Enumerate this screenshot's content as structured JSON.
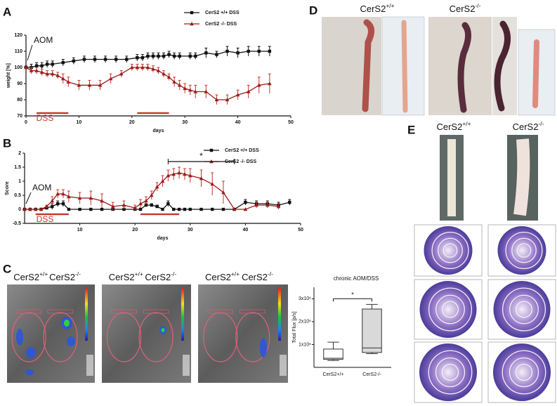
{
  "panel_labels": [
    "A",
    "B",
    "C",
    "D",
    "E"
  ],
  "genotype_labels": [
    {
      "base": "CerS2",
      "sup": "+/+"
    },
    {
      "base": "CerS2",
      "sup": "-/-"
    }
  ],
  "chart_data": [
    {
      "type": "line",
      "x_label": "days",
      "y_label": "weight [%]",
      "annotations": [
        "AOM",
        "DSS"
      ],
      "xlim": [
        0,
        50
      ],
      "xticks": [
        0,
        10,
        20,
        30,
        40,
        50
      ],
      "ylim": [
        70,
        120
      ],
      "yticks": [
        70,
        80,
        90,
        100,
        110,
        120
      ],
      "dss_periods": [
        [
          2,
          8
        ],
        [
          21,
          27
        ]
      ],
      "series": [
        {
          "name": "CerS2 +/+ DSS",
          "color": "#111111",
          "marker": "square",
          "x": [
            0,
            1,
            2,
            3,
            4,
            5,
            7,
            9,
            11,
            13,
            15,
            17,
            19,
            21,
            22,
            23,
            24,
            25,
            26,
            27,
            28,
            29,
            31,
            32,
            34,
            36,
            38,
            40,
            42,
            44,
            46
          ],
          "values": [
            100,
            100,
            101,
            101,
            102,
            102,
            103,
            104,
            105,
            105,
            105,
            105,
            105,
            106,
            106,
            107,
            107,
            107,
            107,
            108,
            107,
            107,
            107,
            107,
            109,
            108,
            110,
            109,
            110,
            110,
            110
          ],
          "errors": [
            1,
            2,
            2,
            2,
            2,
            2,
            2,
            2,
            2,
            2,
            2,
            2,
            2,
            2,
            2,
            2,
            2,
            2,
            2,
            2,
            2,
            2,
            2,
            2,
            3,
            2,
            3,
            3,
            3,
            3,
            3
          ]
        },
        {
          "name": "CerS2 -/- DSS",
          "color": "#9b1b1b",
          "marker": "triangle",
          "x": [
            0,
            1,
            2,
            3,
            4,
            5,
            6,
            7,
            8,
            10,
            12,
            14,
            16,
            18,
            20,
            21,
            22,
            23,
            24,
            25,
            26,
            27,
            28,
            29,
            30,
            31,
            32,
            34,
            36,
            38,
            40,
            42,
            44,
            46
          ],
          "values": [
            100,
            98,
            98,
            97,
            96,
            96,
            95,
            93,
            91,
            89,
            89,
            89,
            93,
            96,
            100,
            100,
            100,
            100,
            99,
            98,
            96,
            94,
            91,
            89,
            87,
            86,
            85,
            85,
            80,
            80,
            83,
            85,
            89,
            90
          ],
          "errors": [
            1,
            2,
            2,
            2,
            2,
            2,
            2,
            3,
            3,
            3,
            3,
            3,
            3,
            2,
            2,
            2,
            2,
            2,
            2,
            2,
            2,
            2,
            3,
            3,
            3,
            3,
            4,
            4,
            3,
            3,
            3,
            4,
            5,
            6
          ]
        }
      ]
    },
    {
      "type": "line",
      "x_label": "days",
      "y_label": "Score",
      "annotations": [
        "AOM",
        "DSS",
        "*"
      ],
      "xlim": [
        0,
        50
      ],
      "xticks": [
        10,
        20,
        30,
        40,
        50
      ],
      "ylim": [
        -0.5,
        2.0
      ],
      "yticks": [
        -0.5,
        0.0,
        0.5,
        1.0,
        1.5,
        2.0
      ],
      "dss_periods": [
        [
          2,
          8
        ],
        [
          21,
          28
        ]
      ],
      "sig_range": [
        26,
        38
      ],
      "sig_level": 1.7,
      "series": [
        {
          "name": "CerS2 +/+ DSS",
          "color": "#111111",
          "marker": "square",
          "x": [
            0,
            1,
            2,
            3,
            4,
            5,
            6,
            7,
            8,
            10,
            12,
            14,
            16,
            18,
            20,
            21,
            22,
            23,
            24,
            25,
            26,
            27,
            28,
            29,
            30,
            32,
            34,
            36,
            38,
            40,
            42,
            44,
            46,
            48
          ],
          "values": [
            0,
            0,
            0,
            0,
            0.05,
            0.1,
            0.2,
            0.2,
            0,
            0,
            0,
            0,
            0,
            0,
            0,
            0,
            0.15,
            0.15,
            0.1,
            0,
            0.2,
            0,
            0,
            0,
            0,
            0,
            0,
            0,
            0,
            0.25,
            0.2,
            0.2,
            0.15,
            0.25
          ],
          "errors": [
            0,
            0,
            0,
            0,
            0.05,
            0.1,
            0.1,
            0.1,
            0,
            0,
            0,
            0,
            0,
            0,
            0,
            0,
            0.05,
            0.05,
            0.05,
            0,
            0.1,
            0,
            0,
            0,
            0,
            0,
            0,
            0,
            0,
            0.1,
            0.1,
            0.1,
            0.1,
            0.1
          ]
        },
        {
          "name": "CerS2 -/- DSS",
          "color": "#9b1b1b",
          "marker": "triangle",
          "x": [
            0,
            1,
            2,
            3,
            4,
            5,
            6,
            7,
            8,
            10,
            12,
            14,
            16,
            18,
            20,
            21,
            22,
            23,
            24,
            25,
            26,
            27,
            28,
            29,
            30,
            32,
            34,
            36,
            38,
            40,
            42,
            44,
            46
          ],
          "values": [
            0,
            0,
            0,
            0,
            0.1,
            0.3,
            0.55,
            0.55,
            0.45,
            0.4,
            0.4,
            0.3,
            0.1,
            0.15,
            0.05,
            0.2,
            0.3,
            0.5,
            0.8,
            1.0,
            1.2,
            1.25,
            1.3,
            1.25,
            1.2,
            1.1,
            0.9,
            0.6,
            0,
            0,
            0.15,
            0.15,
            0.1
          ],
          "errors": [
            0,
            0,
            0,
            0,
            0.05,
            0.15,
            0.15,
            0.15,
            0.2,
            0.2,
            0.25,
            0.25,
            0.15,
            0.15,
            0.1,
            0.15,
            0.15,
            0.15,
            0.15,
            0.2,
            0.2,
            0.2,
            0.2,
            0.2,
            0.25,
            0.3,
            0.4,
            0.4,
            0,
            0,
            0.1,
            0.1,
            0.1
          ]
        }
      ]
    },
    {
      "type": "box",
      "title": "chronic AOM/DSS",
      "y_label": "Total Flux [p/s]",
      "annotations": [
        "*"
      ],
      "categories": [
        "CerS2+/+",
        "CerS2-/-"
      ],
      "colors": [
        "#ffffff",
        "#d9d9d9"
      ],
      "ylim": [
        0,
        3500000
      ],
      "yticks": [
        {
          "value": 1000000,
          "label": "1x10⁶"
        },
        {
          "value": 2000000,
          "label": "2x10⁶"
        },
        {
          "value": 3000000,
          "label": "3x10⁶"
        }
      ],
      "sig_level": 3000000,
      "stats": [
        {
          "min": 300000,
          "q1": 350000,
          "median": 400000,
          "q3": 800000,
          "max": 1100000
        },
        {
          "min": 600000,
          "q1": 650000,
          "median": 850000,
          "q3": 2550000,
          "max": 2750000
        }
      ]
    }
  ]
}
